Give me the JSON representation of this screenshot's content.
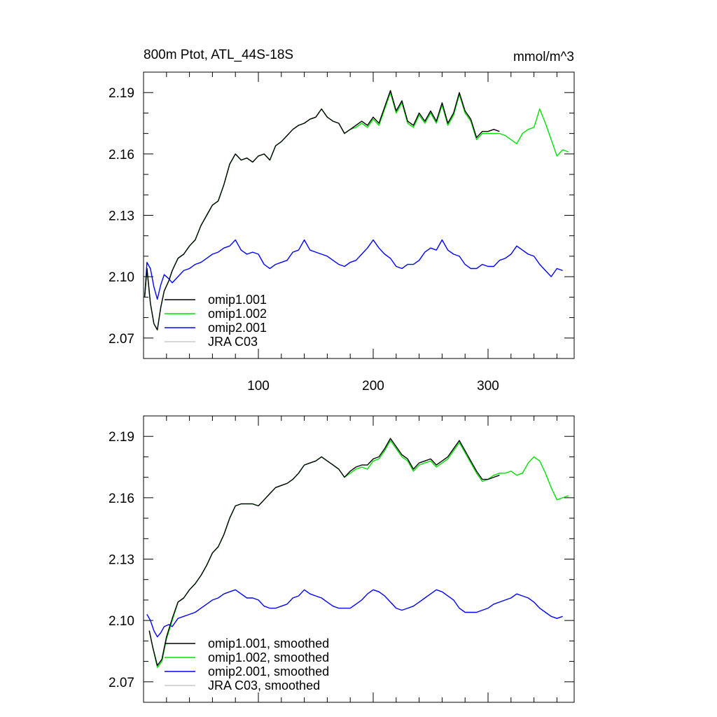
{
  "chart_data": [
    {
      "type": "line",
      "title": "800m Ptot, ATL_44S-18S",
      "units": "mmol/m^3",
      "xlabel": "",
      "ylabel": "",
      "xlim": [
        0,
        375
      ],
      "ylim": [
        2.06,
        2.2
      ],
      "xticks": [
        100,
        200,
        300
      ],
      "xtick_labels": [
        "100",
        "200",
        "300"
      ],
      "yticks": [
        2.07,
        2.1,
        2.13,
        2.16,
        2.19
      ],
      "ytick_labels": [
        "2.07",
        "2.10",
        "2.13",
        "2.16",
        "2.19"
      ],
      "legend_position": "lower-left",
      "series": [
        {
          "name": "omip1.001",
          "color": "#000000",
          "x": [
            1,
            3,
            6,
            9,
            12,
            15,
            18,
            22,
            25,
            30,
            35,
            40,
            45,
            50,
            55,
            60,
            65,
            70,
            75,
            80,
            85,
            90,
            95,
            100,
            105,
            110,
            115,
            120,
            125,
            130,
            135,
            140,
            145,
            150,
            155,
            160,
            165,
            170,
            175,
            180,
            185,
            190,
            195,
            200,
            205,
            210,
            215,
            220,
            225,
            230,
            235,
            240,
            245,
            250,
            255,
            260,
            265,
            270,
            275,
            280,
            285,
            290,
            295,
            300,
            305,
            310
          ],
          "y": [
            2.09,
            2.104,
            2.087,
            2.077,
            2.074,
            2.085,
            2.093,
            2.098,
            2.103,
            2.109,
            2.111,
            2.115,
            2.118,
            2.125,
            2.13,
            2.135,
            2.137,
            2.145,
            2.155,
            2.16,
            2.157,
            2.158,
            2.156,
            2.159,
            2.16,
            2.157,
            2.164,
            2.166,
            2.169,
            2.172,
            2.174,
            2.175,
            2.177,
            2.178,
            2.182,
            2.178,
            2.176,
            2.175,
            2.17,
            2.172,
            2.174,
            2.176,
            2.174,
            2.178,
            2.175,
            2.183,
            2.191,
            2.181,
            2.186,
            2.176,
            2.174,
            2.18,
            2.176,
            2.181,
            2.176,
            2.185,
            2.175,
            2.18,
            2.19,
            2.181,
            2.177,
            2.168,
            2.171,
            2.171,
            2.172,
            2.171
          ]
        },
        {
          "name": "omip1.002",
          "color": "#00e000",
          "x": [
            1,
            3,
            6,
            9,
            12,
            15,
            18,
            22,
            25,
            30,
            35,
            40,
            45,
            50,
            55,
            60,
            65,
            70,
            75,
            80,
            85,
            90,
            95,
            100,
            105,
            110,
            115,
            120,
            125,
            130,
            135,
            140,
            145,
            150,
            155,
            160,
            165,
            170,
            175,
            180,
            185,
            190,
            195,
            200,
            205,
            210,
            215,
            220,
            225,
            230,
            235,
            240,
            245,
            250,
            255,
            260,
            265,
            270,
            275,
            280,
            285,
            290,
            295,
            300,
            305,
            310,
            315,
            320,
            325,
            330,
            335,
            340,
            345,
            350,
            355,
            360,
            365,
            370
          ],
          "y": [
            2.09,
            2.104,
            2.087,
            2.077,
            2.074,
            2.085,
            2.093,
            2.098,
            2.103,
            2.109,
            2.111,
            2.115,
            2.118,
            2.125,
            2.13,
            2.135,
            2.137,
            2.145,
            2.155,
            2.16,
            2.157,
            2.158,
            2.156,
            2.159,
            2.16,
            2.157,
            2.164,
            2.166,
            2.169,
            2.172,
            2.174,
            2.175,
            2.177,
            2.178,
            2.182,
            2.178,
            2.176,
            2.175,
            2.17,
            2.172,
            2.173,
            2.175,
            2.173,
            2.177,
            2.174,
            2.182,
            2.19,
            2.18,
            2.185,
            2.175,
            2.173,
            2.179,
            2.175,
            2.18,
            2.175,
            2.184,
            2.174,
            2.179,
            2.189,
            2.18,
            2.176,
            2.167,
            2.17,
            2.17,
            2.17,
            2.17,
            2.169,
            2.167,
            2.165,
            2.17,
            2.172,
            2.173,
            2.182,
            2.175,
            2.167,
            2.159,
            2.162,
            2.161
          ]
        },
        {
          "name": "omip2.001",
          "color": "#0000ff",
          "x": [
            1,
            3,
            6,
            9,
            12,
            15,
            18,
            22,
            25,
            30,
            35,
            40,
            45,
            50,
            55,
            60,
            65,
            70,
            75,
            80,
            85,
            90,
            95,
            100,
            105,
            110,
            115,
            120,
            125,
            130,
            135,
            140,
            145,
            150,
            155,
            160,
            165,
            170,
            175,
            180,
            185,
            190,
            195,
            200,
            205,
            210,
            215,
            220,
            225,
            230,
            235,
            240,
            245,
            250,
            255,
            260,
            265,
            270,
            275,
            280,
            285,
            290,
            295,
            300,
            305,
            310,
            315,
            320,
            325,
            330,
            335,
            340,
            345,
            350,
            355,
            360,
            365
          ],
          "y": [
            2.09,
            2.107,
            2.104,
            2.095,
            2.089,
            2.096,
            2.101,
            2.099,
            2.097,
            2.1,
            2.103,
            2.104,
            2.106,
            2.107,
            2.109,
            2.111,
            2.112,
            2.114,
            2.115,
            2.118,
            2.113,
            2.111,
            2.112,
            2.111,
            2.106,
            2.104,
            2.106,
            2.107,
            2.108,
            2.112,
            2.113,
            2.118,
            2.113,
            2.112,
            2.111,
            2.11,
            2.108,
            2.106,
            2.105,
            2.107,
            2.108,
            2.111,
            2.114,
            2.118,
            2.114,
            2.111,
            2.109,
            2.105,
            2.104,
            2.106,
            2.106,
            2.108,
            2.112,
            2.114,
            2.113,
            2.118,
            2.113,
            2.111,
            2.11,
            2.106,
            2.104,
            2.104,
            2.106,
            2.105,
            2.105,
            2.108,
            2.109,
            2.111,
            2.115,
            2.113,
            2.111,
            2.11,
            2.106,
            2.103,
            2.1,
            2.104,
            2.103
          ]
        },
        {
          "name": "JRA C03",
          "color": "#c8c8c8",
          "x": [],
          "y": []
        }
      ]
    },
    {
      "type": "line",
      "title": "",
      "xlabel": "",
      "ylabel": "",
      "xlim": [
        0,
        375
      ],
      "ylim": [
        2.06,
        2.2
      ],
      "xticks": [
        100,
        200,
        300
      ],
      "xtick_labels": [],
      "yticks": [
        2.07,
        2.1,
        2.13,
        2.16,
        2.19
      ],
      "ytick_labels": [
        "2.07",
        "2.10",
        "2.13",
        "2.16",
        "2.19"
      ],
      "legend_position": "lower-left",
      "series": [
        {
          "name": "omip1.001, smoothed",
          "color": "#000000",
          "x": [
            5,
            8,
            12,
            16,
            20,
            25,
            30,
            35,
            40,
            45,
            50,
            55,
            60,
            65,
            70,
            75,
            80,
            85,
            90,
            95,
            100,
            105,
            110,
            115,
            120,
            125,
            130,
            135,
            140,
            145,
            150,
            155,
            160,
            165,
            170,
            175,
            180,
            185,
            190,
            195,
            200,
            205,
            210,
            215,
            220,
            225,
            230,
            235,
            240,
            245,
            250,
            255,
            260,
            265,
            270,
            275,
            280,
            285,
            290,
            295,
            300,
            305,
            310
          ],
          "y": [
            2.095,
            2.087,
            2.078,
            2.081,
            2.092,
            2.101,
            2.109,
            2.111,
            2.115,
            2.118,
            2.122,
            2.127,
            2.133,
            2.136,
            2.142,
            2.15,
            2.156,
            2.157,
            2.157,
            2.157,
            2.156,
            2.159,
            2.162,
            2.165,
            2.166,
            2.167,
            2.169,
            2.172,
            2.176,
            2.177,
            2.178,
            2.18,
            2.178,
            2.176,
            2.174,
            2.17,
            2.173,
            2.175,
            2.176,
            2.176,
            2.179,
            2.18,
            2.184,
            2.189,
            2.185,
            2.181,
            2.179,
            2.174,
            2.177,
            2.178,
            2.179,
            2.176,
            2.178,
            2.18,
            2.184,
            2.188,
            2.183,
            2.178,
            2.173,
            2.169,
            2.169,
            2.17,
            2.171
          ]
        },
        {
          "name": "omip1.002, smoothed",
          "color": "#00e000",
          "x": [
            5,
            8,
            12,
            16,
            20,
            25,
            30,
            35,
            40,
            45,
            50,
            55,
            60,
            65,
            70,
            75,
            80,
            85,
            90,
            95,
            100,
            105,
            110,
            115,
            120,
            125,
            130,
            135,
            140,
            145,
            150,
            155,
            160,
            165,
            170,
            175,
            180,
            185,
            190,
            195,
            200,
            205,
            210,
            215,
            220,
            225,
            230,
            235,
            240,
            245,
            250,
            255,
            260,
            265,
            270,
            275,
            280,
            285,
            290,
            295,
            300,
            305,
            310,
            315,
            320,
            325,
            330,
            335,
            340,
            345,
            350,
            355,
            360,
            365,
            370
          ],
          "y": [
            2.095,
            2.087,
            2.077,
            2.08,
            2.091,
            2.1,
            2.109,
            2.111,
            2.115,
            2.118,
            2.122,
            2.127,
            2.133,
            2.136,
            2.142,
            2.15,
            2.156,
            2.157,
            2.157,
            2.157,
            2.156,
            2.159,
            2.162,
            2.165,
            2.166,
            2.167,
            2.169,
            2.172,
            2.176,
            2.177,
            2.178,
            2.18,
            2.178,
            2.176,
            2.174,
            2.17,
            2.172,
            2.174,
            2.175,
            2.174,
            2.178,
            2.179,
            2.183,
            2.188,
            2.184,
            2.18,
            2.178,
            2.173,
            2.176,
            2.177,
            2.178,
            2.175,
            2.177,
            2.179,
            2.183,
            2.187,
            2.182,
            2.177,
            2.172,
            2.168,
            2.169,
            2.171,
            2.172,
            2.172,
            2.173,
            2.171,
            2.172,
            2.177,
            2.18,
            2.178,
            2.172,
            2.165,
            2.159,
            2.16,
            2.161
          ]
        },
        {
          "name": "omip2.001, smoothed",
          "color": "#0000ff",
          "x": [
            3,
            6,
            9,
            12,
            15,
            18,
            22,
            25,
            30,
            35,
            40,
            45,
            50,
            55,
            60,
            65,
            70,
            75,
            80,
            85,
            90,
            95,
            100,
            105,
            110,
            115,
            120,
            125,
            130,
            135,
            140,
            145,
            150,
            155,
            160,
            165,
            170,
            175,
            180,
            185,
            190,
            195,
            200,
            205,
            210,
            215,
            220,
            225,
            230,
            235,
            240,
            245,
            250,
            255,
            260,
            265,
            270,
            275,
            280,
            285,
            290,
            295,
            300,
            305,
            310,
            315,
            320,
            325,
            330,
            335,
            340,
            345,
            350,
            355,
            360,
            365
          ],
          "y": [
            2.103,
            2.1,
            2.095,
            2.092,
            2.094,
            2.097,
            2.098,
            2.097,
            2.101,
            2.102,
            2.103,
            2.104,
            2.106,
            2.108,
            2.11,
            2.111,
            2.113,
            2.114,
            2.115,
            2.113,
            2.111,
            2.111,
            2.11,
            2.107,
            2.106,
            2.106,
            2.107,
            2.108,
            2.111,
            2.112,
            2.115,
            2.113,
            2.112,
            2.111,
            2.109,
            2.107,
            2.106,
            2.106,
            2.106,
            2.108,
            2.11,
            2.113,
            2.115,
            2.114,
            2.112,
            2.109,
            2.106,
            2.105,
            2.106,
            2.107,
            2.109,
            2.111,
            2.113,
            2.115,
            2.114,
            2.112,
            2.11,
            2.106,
            2.104,
            2.104,
            2.104,
            2.105,
            2.106,
            2.108,
            2.109,
            2.11,
            2.111,
            2.113,
            2.112,
            2.111,
            2.109,
            2.106,
            2.104,
            2.102,
            2.101,
            2.102
          ]
        },
        {
          "name": "JRA C03, smoothed",
          "color": "#c8c8c8",
          "x": [],
          "y": []
        }
      ]
    }
  ]
}
